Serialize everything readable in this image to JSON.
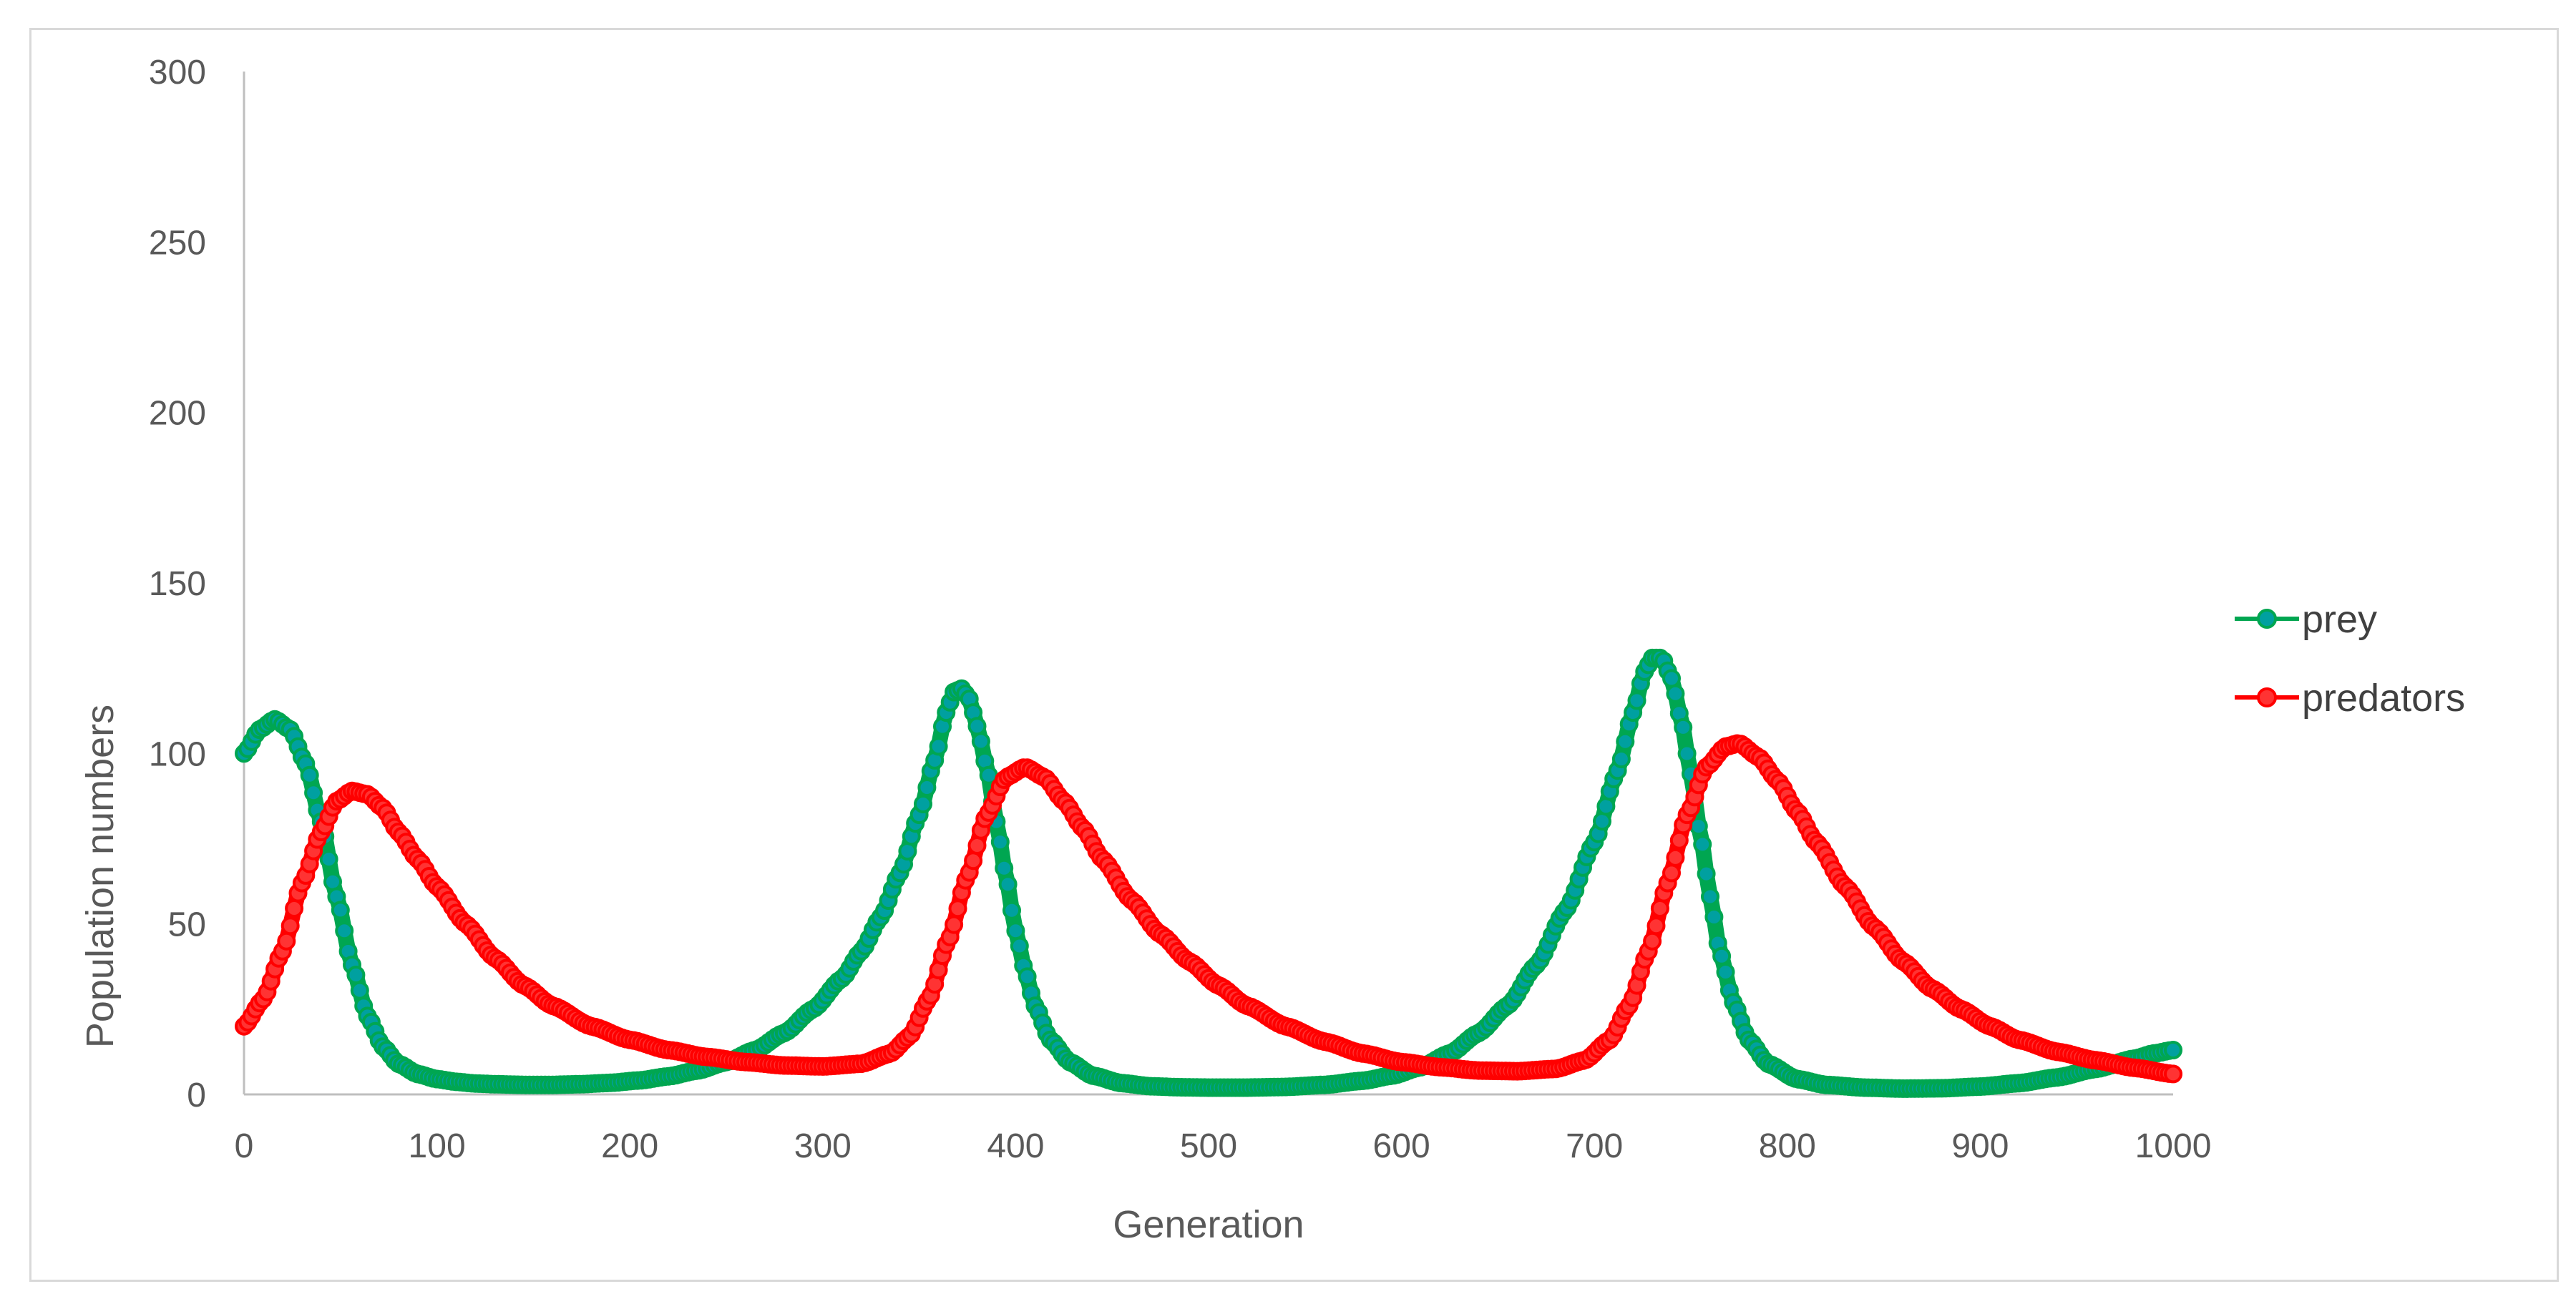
{
  "chart_data": {
    "type": "scatter",
    "title": "",
    "xlabel": "Generation",
    "ylabel": "Population numbers",
    "xlim": [
      0,
      1000
    ],
    "ylim": [
      0,
      300
    ],
    "xticks": [
      0,
      100,
      200,
      300,
      400,
      500,
      600,
      700,
      800,
      900,
      1000
    ],
    "yticks": [
      0,
      50,
      100,
      150,
      200,
      250,
      300
    ],
    "grid": false,
    "legend_position": "right",
    "series": [
      {
        "name": "prey",
        "color": "#00a651",
        "marker_color": "#00a0a0",
        "points": [
          [
            0,
            100
          ],
          [
            8,
            107
          ],
          [
            16,
            110
          ],
          [
            24,
            107
          ],
          [
            32,
            97
          ],
          [
            40,
            80
          ],
          [
            48,
            58
          ],
          [
            56,
            38
          ],
          [
            64,
            23
          ],
          [
            72,
            14
          ],
          [
            80,
            9
          ],
          [
            90,
            6
          ],
          [
            100,
            4.5
          ],
          [
            110,
            3.7
          ],
          [
            120,
            3.2
          ],
          [
            130,
            3
          ],
          [
            145,
            2.8
          ],
          [
            160,
            2.8
          ],
          [
            175,
            3
          ],
          [
            190,
            3.4
          ],
          [
            205,
            4.1
          ],
          [
            220,
            5.3
          ],
          [
            235,
            7
          ],
          [
            250,
            9.5
          ],
          [
            265,
            13
          ],
          [
            280,
            18
          ],
          [
            295,
            25
          ],
          [
            310,
            34
          ],
          [
            320,
            42
          ],
          [
            330,
            52
          ],
          [
            340,
            65
          ],
          [
            350,
            82
          ],
          [
            358,
            98
          ],
          [
            364,
            112
          ],
          [
            368,
            118
          ],
          [
            372,
            119
          ],
          [
            376,
            116
          ],
          [
            380,
            108
          ],
          [
            385,
            96
          ],
          [
            390,
            80
          ],
          [
            395,
            64
          ],
          [
            400,
            48
          ],
          [
            405,
            36
          ],
          [
            410,
            26
          ],
          [
            418,
            16
          ],
          [
            428,
            9.5
          ],
          [
            440,
            5.5
          ],
          [
            455,
            3.3
          ],
          [
            470,
            2.4
          ],
          [
            485,
            2.1
          ],
          [
            500,
            2
          ],
          [
            520,
            2
          ],
          [
            540,
            2.2
          ],
          [
            560,
            2.8
          ],
          [
            580,
            4
          ],
          [
            595,
            5.5
          ],
          [
            610,
            8
          ],
          [
            625,
            12
          ],
          [
            640,
            18
          ],
          [
            655,
            26
          ],
          [
            670,
            38
          ],
          [
            685,
            54
          ],
          [
            700,
            74
          ],
          [
            712,
            95
          ],
          [
            720,
            112
          ],
          [
            726,
            124
          ],
          [
            730,
            128
          ],
          [
            735,
            128
          ],
          [
            740,
            122
          ],
          [
            745,
            110
          ],
          [
            750,
            94
          ],
          [
            755,
            76
          ],
          [
            760,
            58
          ],
          [
            765,
            42
          ],
          [
            772,
            27
          ],
          [
            780,
            16
          ],
          [
            790,
            9
          ],
          [
            805,
            4.5
          ],
          [
            820,
            2.8
          ],
          [
            840,
            2
          ],
          [
            860,
            1.7
          ],
          [
            880,
            1.8
          ],
          [
            900,
            2.3
          ],
          [
            920,
            3.3
          ],
          [
            940,
            5
          ],
          [
            960,
            7.5
          ],
          [
            980,
            10.5
          ],
          [
            990,
            12
          ],
          [
            1000,
            13
          ]
        ]
      },
      {
        "name": "predators",
        "color": "#ff0000",
        "marker_color": "#ff3333",
        "points": [
          [
            0,
            20
          ],
          [
            10,
            28
          ],
          [
            20,
            42
          ],
          [
            30,
            62
          ],
          [
            40,
            77
          ],
          [
            48,
            86
          ],
          [
            56,
            89
          ],
          [
            64,
            88
          ],
          [
            72,
            84
          ],
          [
            80,
            77
          ],
          [
            90,
            69
          ],
          [
            100,
            61
          ],
          [
            115,
            50
          ],
          [
            130,
            40
          ],
          [
            145,
            32
          ],
          [
            160,
            26
          ],
          [
            180,
            20
          ],
          [
            200,
            16
          ],
          [
            220,
            13
          ],
          [
            240,
            11
          ],
          [
            260,
            9.5
          ],
          [
            280,
            8.5
          ],
          [
            300,
            8.2
          ],
          [
            320,
            9
          ],
          [
            335,
            12
          ],
          [
            345,
            17
          ],
          [
            355,
            28
          ],
          [
            365,
            45
          ],
          [
            375,
            64
          ],
          [
            385,
            82
          ],
          [
            395,
            93
          ],
          [
            405,
            96
          ],
          [
            415,
            93
          ],
          [
            425,
            86
          ],
          [
            435,
            78
          ],
          [
            445,
            69
          ],
          [
            460,
            57
          ],
          [
            475,
            47
          ],
          [
            490,
            39
          ],
          [
            505,
            32
          ],
          [
            520,
            26
          ],
          [
            540,
            20
          ],
          [
            560,
            15.5
          ],
          [
            580,
            12
          ],
          [
            600,
            9.5
          ],
          [
            620,
            8
          ],
          [
            640,
            7
          ],
          [
            660,
            6.8
          ],
          [
            680,
            7.5
          ],
          [
            695,
            10
          ],
          [
            708,
            16
          ],
          [
            718,
            26
          ],
          [
            728,
            42
          ],
          [
            738,
            62
          ],
          [
            748,
            82
          ],
          [
            758,
            96
          ],
          [
            768,
            102
          ],
          [
            775,
            103
          ],
          [
            785,
            99
          ],
          [
            795,
            92
          ],
          [
            805,
            83
          ],
          [
            815,
            74
          ],
          [
            830,
            61
          ],
          [
            845,
            49
          ],
          [
            860,
            39
          ],
          [
            875,
            31
          ],
          [
            890,
            25
          ],
          [
            905,
            20
          ],
          [
            920,
            16
          ],
          [
            940,
            12.5
          ],
          [
            960,
            10
          ],
          [
            980,
            7.8
          ],
          [
            1000,
            6
          ]
        ]
      }
    ]
  }
}
